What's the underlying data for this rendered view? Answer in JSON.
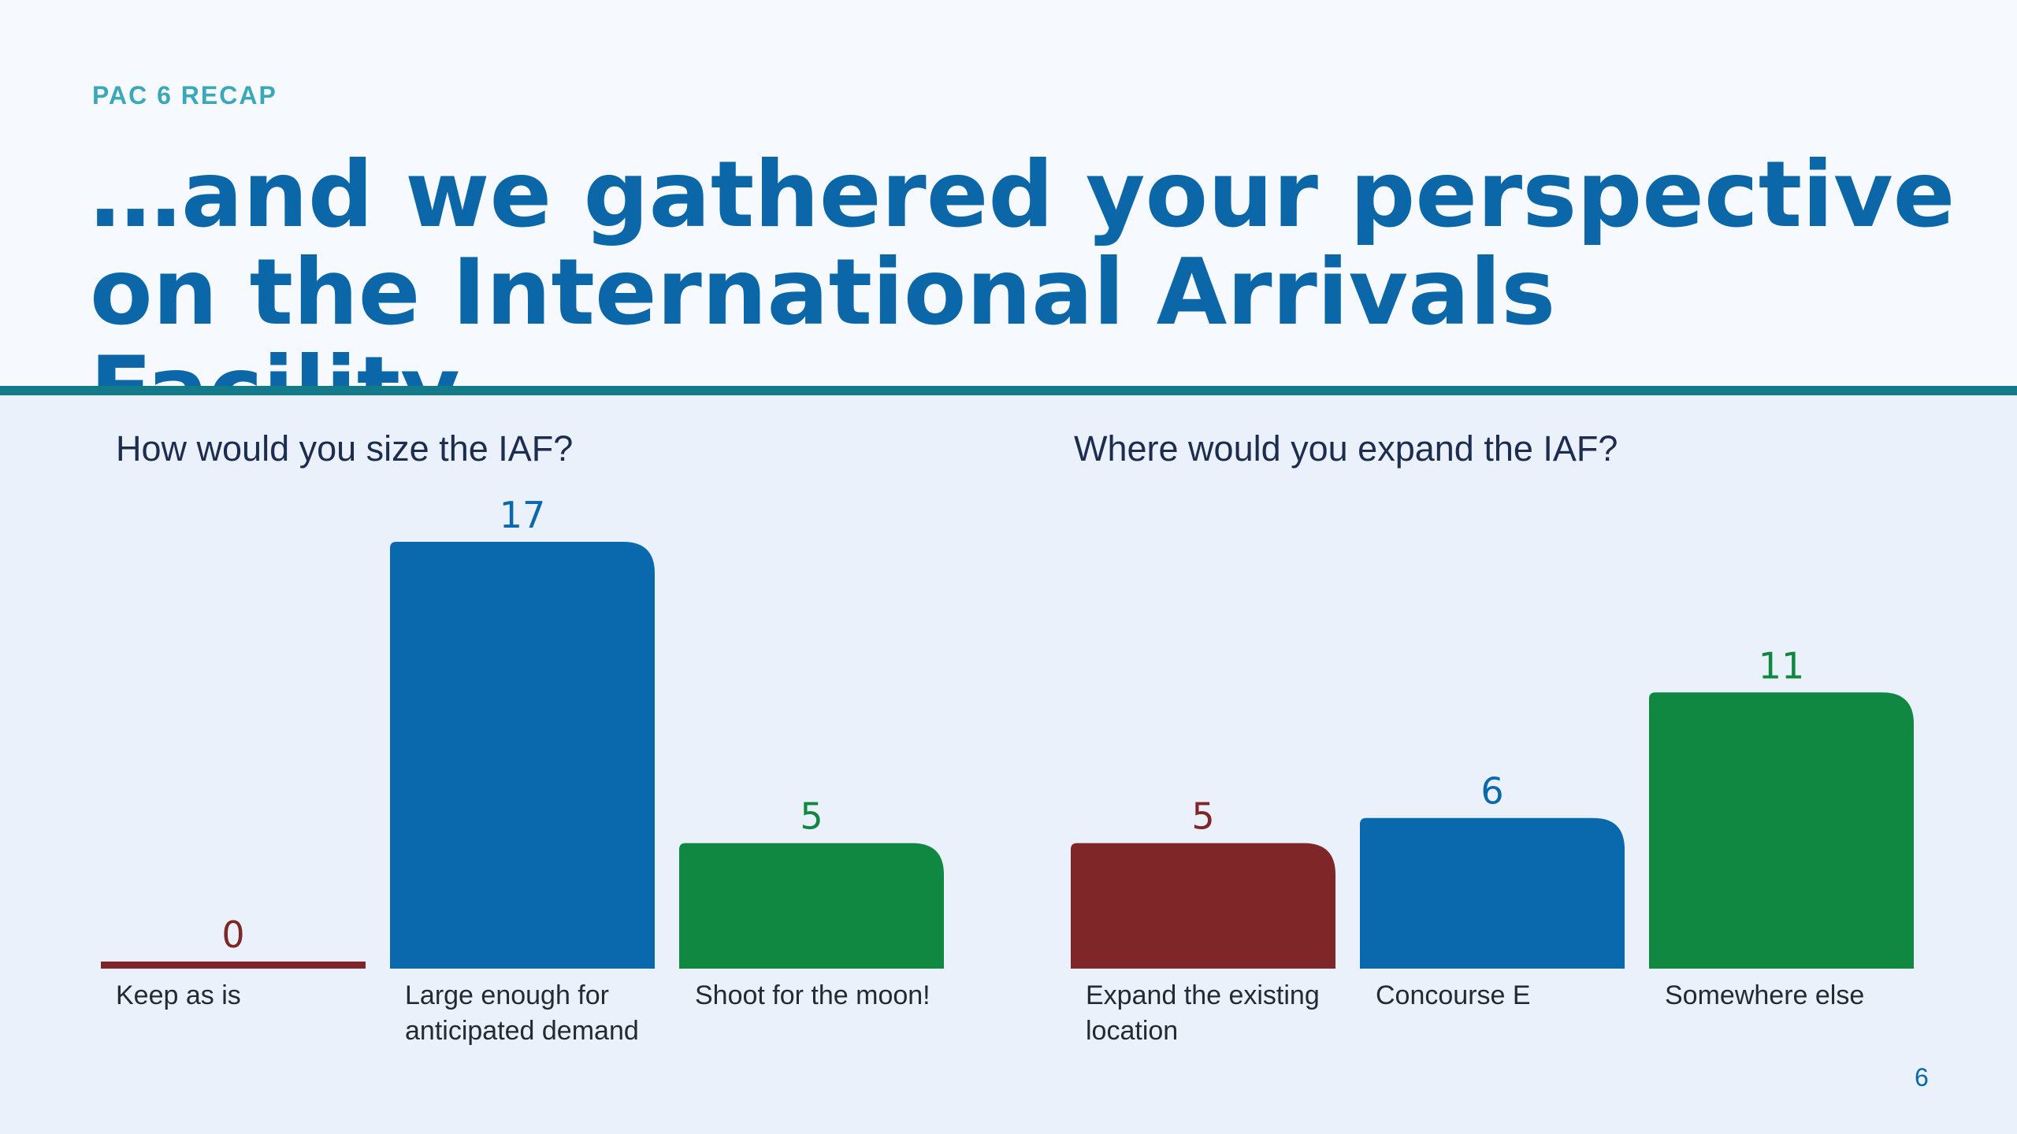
{
  "slide": {
    "kicker": "PAC 6 RECAP",
    "title": "…and we gathered your perspective on the International Arrivals Facility.",
    "page_number": "6"
  },
  "colors": {
    "title": "#0b67a8",
    "kicker": "#3aa8b8",
    "rule": "#137a88",
    "red": "#7e2628",
    "blue": "#0a69ad",
    "green": "#108842"
  },
  "chart_data": [
    {
      "type": "bar",
      "title": "How would you size the IAF?",
      "categories": [
        "Keep as is",
        "Large enough for anticipated demand",
        "Shoot for the moon!"
      ],
      "values": [
        0,
        17,
        5
      ],
      "colors": [
        "#7e2628",
        "#0a69ad",
        "#108842"
      ],
      "ylim": [
        0,
        17
      ],
      "grid": false,
      "legend": "none"
    },
    {
      "type": "bar",
      "title": "Where would you expand the IAF?",
      "categories": [
        "Expand the existing location",
        "Concourse E",
        "Somewhere else"
      ],
      "values": [
        5,
        6,
        11
      ],
      "colors": [
        "#7e2628",
        "#0a69ad",
        "#108842"
      ],
      "ylim": [
        0,
        17
      ],
      "grid": false,
      "legend": "none"
    }
  ]
}
